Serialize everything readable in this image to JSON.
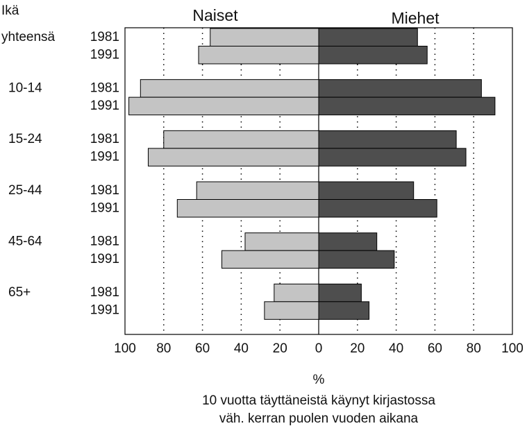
{
  "chart_data": {
    "type": "butterfly_bar",
    "age_heading": "Ikä",
    "groups": [
      "yhteensä",
      "10-14",
      "15-24",
      "25-44",
      "45-64",
      "65+"
    ],
    "years": [
      "1981",
      "1991"
    ],
    "series": [
      {
        "name": "Naiset",
        "color": "#c4c4c4",
        "side": "left",
        "values": [
          [
            56,
            62
          ],
          [
            92,
            98
          ],
          [
            80,
            88
          ],
          [
            63,
            73
          ],
          [
            38,
            50
          ],
          [
            23,
            28
          ]
        ]
      },
      {
        "name": "Miehet",
        "color": "#4e4e4e",
        "side": "right",
        "values": [
          [
            51,
            56
          ],
          [
            84,
            91
          ],
          [
            71,
            76
          ],
          [
            49,
            61
          ],
          [
            30,
            39
          ],
          [
            22,
            26
          ]
        ]
      }
    ],
    "xlim": [
      -100,
      100
    ],
    "xticks": [
      {
        "value": -100,
        "label": "100"
      },
      {
        "value": -80,
        "label": "80"
      },
      {
        "value": -60,
        "label": "60"
      },
      {
        "value": -40,
        "label": "40"
      },
      {
        "value": -20,
        "label": "20"
      },
      0,
      20,
      40,
      60,
      80,
      100
    ],
    "xlabel": "%",
    "note": [
      "10 vuotta täyttäneistä käynyt kirjastossa",
      "väh. kerran puolen vuoden aikana"
    ],
    "grid": true
  }
}
